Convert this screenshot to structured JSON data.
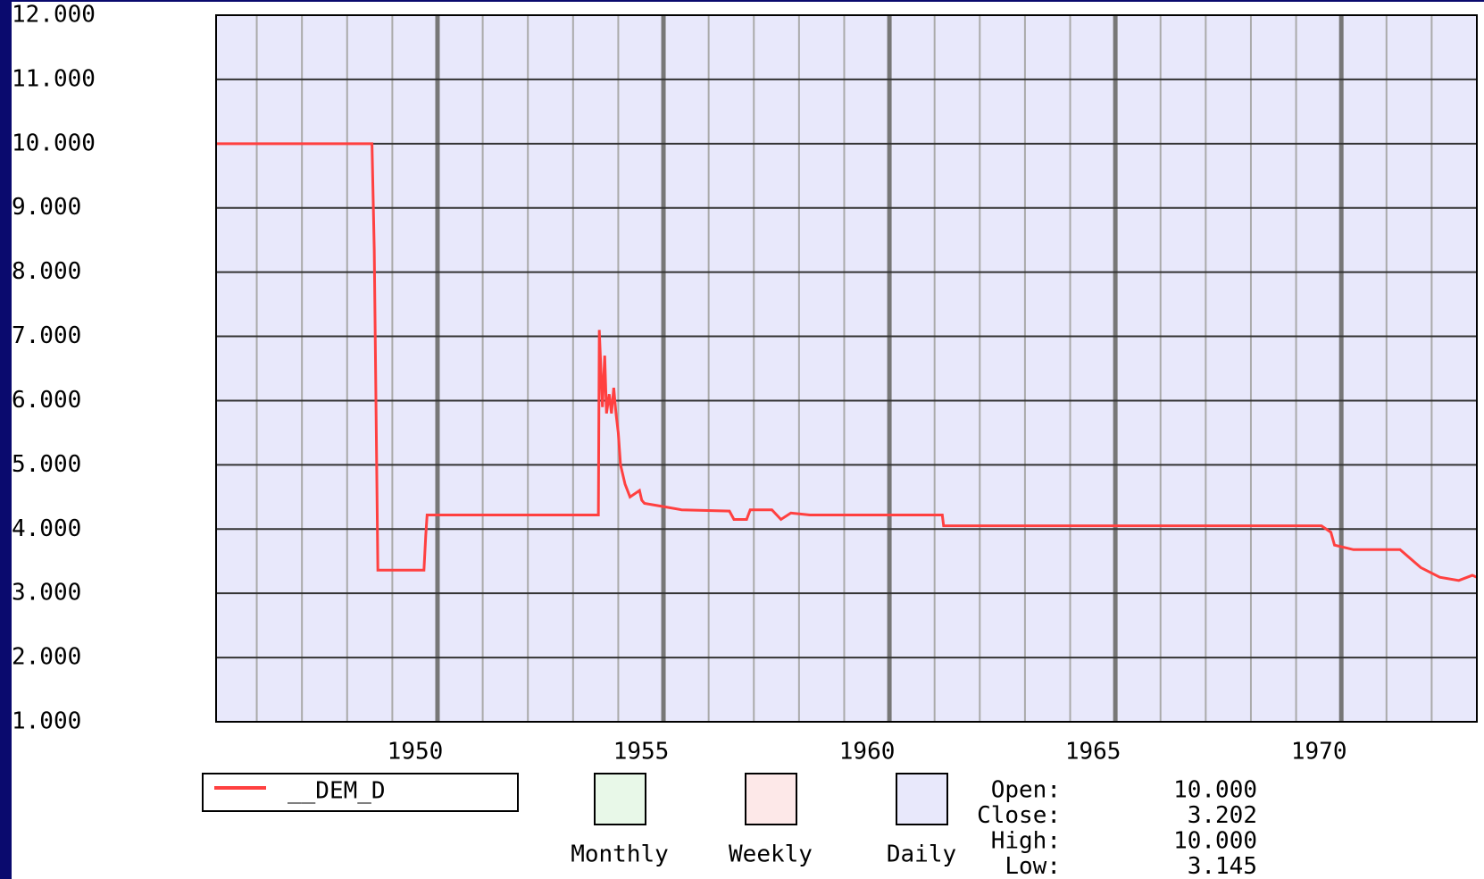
{
  "chart_data": {
    "type": "line",
    "series": [
      {
        "name": "__DEM_D",
        "color": "#ff4040",
        "x": [
          1945.1,
          1948.55,
          1948.6,
          1948.68,
          1949.7,
          1949.74,
          1949.77,
          1953.56,
          1953.58,
          1953.65,
          1953.7,
          1953.74,
          1953.8,
          1953.85,
          1953.9,
          1953.95,
          1954.0,
          1954.05,
          1954.15,
          1954.26,
          1954.47,
          1954.52,
          1954.58,
          1955.0,
          1955.4,
          1956.46,
          1956.56,
          1956.84,
          1956.92,
          1957.4,
          1957.6,
          1957.82,
          1958.24,
          1961.17,
          1961.2,
          1969.56,
          1969.77,
          1969.85,
          1970.27,
          1971.3,
          1971.76,
          1972.18,
          1972.6,
          1972.9,
          1973.0
        ],
        "values": [
          10.0,
          10.0,
          8.35,
          3.36,
          3.36,
          3.9,
          4.22,
          4.22,
          7.1,
          5.9,
          6.7,
          5.8,
          6.1,
          5.8,
          6.2,
          5.8,
          5.5,
          5.0,
          4.7,
          4.5,
          4.6,
          4.45,
          4.4,
          4.35,
          4.3,
          4.28,
          4.15,
          4.15,
          4.3,
          4.3,
          4.15,
          4.25,
          4.22,
          4.22,
          4.05,
          4.05,
          3.95,
          3.75,
          3.68,
          3.68,
          3.4,
          3.25,
          3.2,
          3.28,
          3.25
        ]
      }
    ],
    "xlim": [
      1945.1,
      1973.0
    ],
    "xticks": [
      1950,
      1955,
      1960,
      1965,
      1970
    ],
    "xminor": [
      1946,
      1947,
      1948,
      1949,
      1951,
      1952,
      1953,
      1954,
      1956,
      1957,
      1958,
      1959,
      1961,
      1962,
      1963,
      1964,
      1966,
      1967,
      1968,
      1969,
      1971,
      1972
    ],
    "ylim": [
      1,
      12
    ],
    "yticks": [
      {
        "value": 1,
        "label": "1.000"
      },
      {
        "value": 2,
        "label": "2.000"
      },
      {
        "value": 3,
        "label": "3.000"
      },
      {
        "value": 4,
        "label": "4.000"
      },
      {
        "value": 5,
        "label": "5.000"
      },
      {
        "value": 6,
        "label": "6.000"
      },
      {
        "value": 7,
        "label": "7.000"
      },
      {
        "value": 8,
        "label": "8.000"
      },
      {
        "value": 9,
        "label": "9.000"
      },
      {
        "value": 10,
        "label": "10.000"
      },
      {
        "value": 11,
        "label": "11.000"
      },
      {
        "value": 12,
        "label": "12.000"
      }
    ],
    "grid": true,
    "background": "#e8e8fb"
  },
  "timeframes": [
    {
      "label": "Monthly",
      "color": "#e8f8e8"
    },
    {
      "label": "Weekly",
      "color": "#fde8e8"
    },
    {
      "label": "Daily",
      "color": "#e8e8fb"
    }
  ],
  "stats": [
    {
      "label": "Open:",
      "value": "10.000"
    },
    {
      "label": "Close:",
      "value": "3.202"
    },
    {
      "label": "High:",
      "value": "10.000"
    },
    {
      "label": "Low:",
      "value": "3.145"
    }
  ]
}
